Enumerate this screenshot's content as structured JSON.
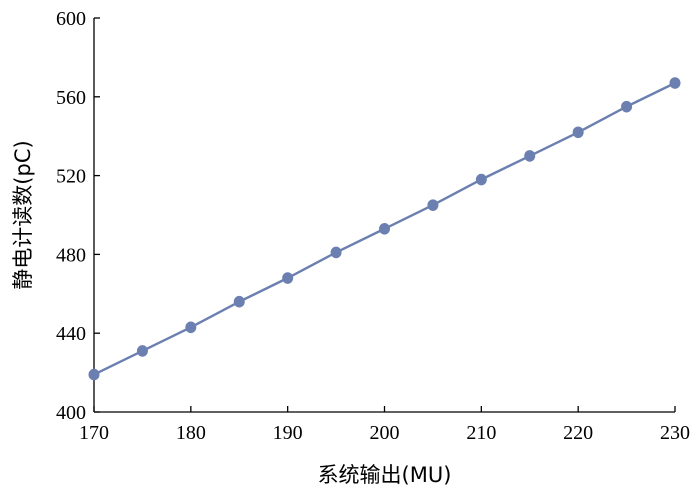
{
  "chart_data": {
    "type": "line",
    "title": "",
    "xlabel": "系统输出(MU)",
    "ylabel": "静电计读数(pC)",
    "xlim": [
      170,
      230
    ],
    "ylim": [
      400,
      600
    ],
    "xticks": [
      170,
      180,
      190,
      200,
      210,
      220,
      230
    ],
    "yticks": [
      400,
      440,
      480,
      520,
      560,
      600
    ],
    "grid": false,
    "legend": "none",
    "series": [
      {
        "color": "#6b7fb0",
        "x": [
          170,
          175,
          180,
          185,
          190,
          195,
          200,
          205,
          210,
          215,
          220,
          225,
          230
        ],
        "y": [
          419,
          431,
          443,
          456,
          468,
          481,
          493,
          505,
          518,
          530,
          542,
          555,
          567
        ]
      }
    ]
  }
}
